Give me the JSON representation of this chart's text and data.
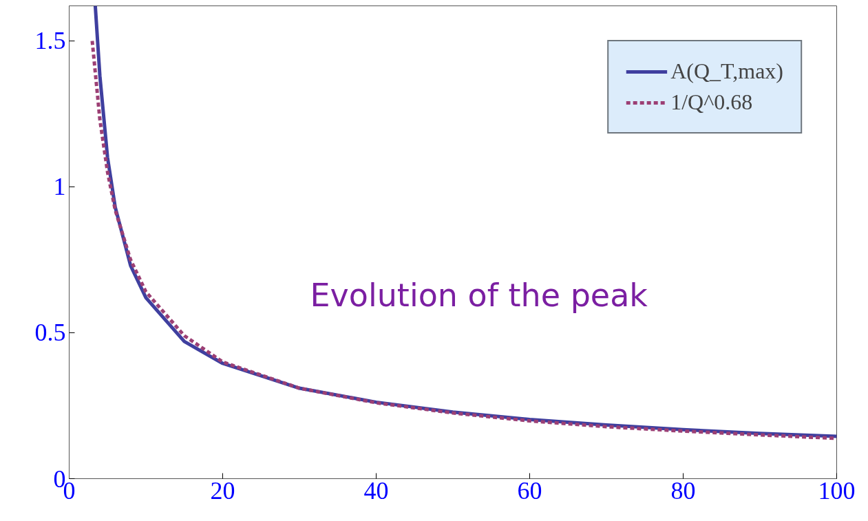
{
  "chart_data": {
    "type": "line",
    "annotations": [
      "Evolution of the peak"
    ],
    "series": [
      {
        "name": "A(Q_T,max)",
        "color": "#3f3f9f",
        "line_style": "solid",
        "x": [
          3.4,
          4,
          5,
          6,
          8,
          10,
          15,
          20,
          30,
          40,
          50,
          60,
          70,
          80,
          90,
          100
        ],
        "values": [
          1.62,
          1.38,
          1.1,
          0.93,
          0.73,
          0.62,
          0.47,
          0.395,
          0.31,
          0.262,
          0.228,
          0.203,
          0.184,
          0.168,
          0.155,
          0.145
        ]
      },
      {
        "name": "1/Q^0.68",
        "color": "#9c3f74",
        "line_style": "dashed",
        "x": [
          3,
          4,
          5,
          6,
          8,
          10,
          15,
          20,
          30,
          40,
          50,
          60,
          70,
          80,
          90,
          100
        ],
        "values": [
          1.5,
          1.23,
          1.05,
          0.92,
          0.75,
          0.64,
          0.49,
          0.4,
          0.31,
          0.26,
          0.225,
          0.198,
          0.178,
          0.163,
          0.15,
          0.138
        ]
      }
    ],
    "xlim": [
      0,
      100
    ],
    "ylim": [
      0,
      1.62
    ],
    "xticks": [
      0,
      20,
      40,
      60,
      80,
      100
    ],
    "yticks": [
      0,
      {
        "value": 0.5,
        "label": "0.5"
      },
      1,
      1.5
    ],
    "grid": false,
    "legend": "top right"
  }
}
